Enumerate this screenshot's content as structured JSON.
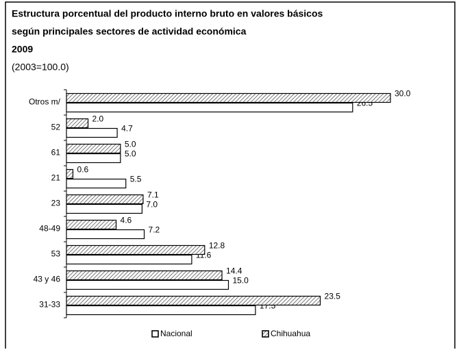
{
  "chart_data": {
    "type": "barh",
    "title": [
      "Estructura porcentual del producto interno bruto en valores básicos",
      "según principales sectores de actividad económica",
      "2009"
    ],
    "subtitle": "(2003=100.0)",
    "categories": [
      "Otros m/",
      "52",
      "61",
      "21",
      "23",
      "48-49",
      "53",
      "43 y 46",
      "31-33"
    ],
    "series": [
      {
        "name": "Nacional",
        "color": "#ffffff",
        "values": [
          26.5,
          4.7,
          5.0,
          5.5,
          7.0,
          7.2,
          11.6,
          15.0,
          17.5
        ],
        "value_labels": [
          "26.5",
          "4.7",
          "5.0",
          "5.5",
          "7.0",
          "7.2",
          "11.6",
          "15.0",
          "17.5"
        ]
      },
      {
        "name": "Chihuahua",
        "color": "#555555",
        "pattern": "hatch",
        "values": [
          30.0,
          2.0,
          5.0,
          0.6,
          7.1,
          4.6,
          12.8,
          14.4,
          23.5
        ],
        "value_labels": [
          "30.0",
          "2.0",
          "5.0",
          "0.6",
          "7.1",
          "4.6",
          "12.8",
          "14.4",
          "23.5"
        ]
      }
    ],
    "xlim": [
      0,
      30
    ]
  }
}
